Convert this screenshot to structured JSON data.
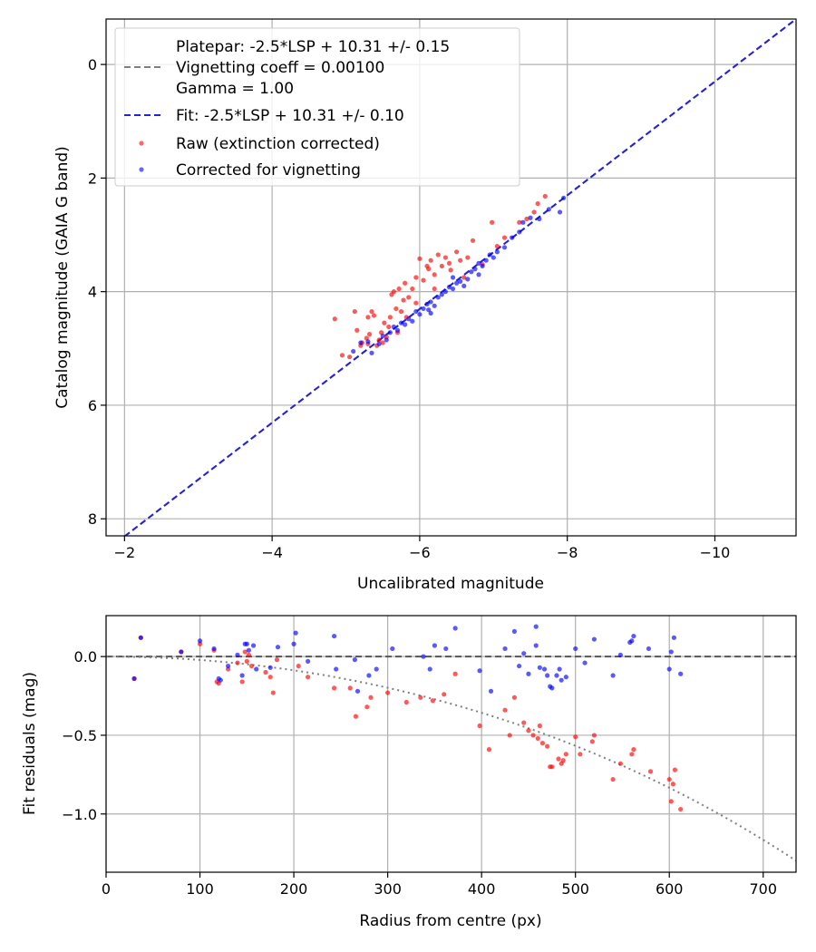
{
  "chart_data": [
    {
      "type": "scatter",
      "xlabel": "Uncalibrated magnitude",
      "ylabel": "Catalog magnitude (GAIA G band)",
      "xlim": [
        -1.75,
        -11.1
      ],
      "ylim": [
        8.3,
        -0.8
      ],
      "x_ticks": [
        -2,
        -4,
        -6,
        -8,
        -10
      ],
      "x_tick_labels": [
        "−2",
        "−4",
        "−6",
        "−8",
        "−10"
      ],
      "y_ticks": [
        0,
        2,
        4,
        6,
        8
      ],
      "y_tick_labels": [
        "0",
        "2",
        "4",
        "6",
        "8"
      ],
      "grid": true,
      "legend_position": "top-left",
      "legend": [
        {
          "text": "Platepar: -2.5*LSP + 10.31 +/- 0.15"
        },
        {
          "text": "Vignetting coeff = 0.00100"
        },
        {
          "text": "Gamma = 1.00"
        },
        {
          "text": "Fit: -2.5*LSP + 10.31 +/- 0.10"
        },
        {
          "text": "Raw (extinction corrected)"
        },
        {
          "text": "Corrected for vignetting"
        }
      ],
      "lines": [
        {
          "name": "Platepar",
          "style": "dashed",
          "color": "#7f7f7f",
          "x": [
            -2.0,
            -11.1
          ],
          "y": [
            8.31,
            -0.8
          ]
        },
        {
          "name": "Fit",
          "style": "dashed",
          "color": "#2222dd",
          "x": [
            -2.0,
            -11.1
          ],
          "y": [
            8.31,
            -0.8
          ]
        }
      ],
      "series": [
        {
          "name": "Raw (extinction corrected)",
          "color": "#ff0000",
          "points": [
            [
              -4.85,
              4.48
            ],
            [
              -4.95,
              5.12
            ],
            [
              -5.05,
              5.15
            ],
            [
              -5.12,
              4.35
            ],
            [
              -5.15,
              4.68
            ],
            [
              -5.2,
              4.95
            ],
            [
              -5.22,
              4.9
            ],
            [
              -5.28,
              4.82
            ],
            [
              -5.3,
              4.92
            ],
            [
              -5.32,
              4.75
            ],
            [
              -5.3,
              4.45
            ],
            [
              -5.35,
              4.35
            ],
            [
              -5.38,
              4.42
            ],
            [
              -5.42,
              4.95
            ],
            [
              -5.45,
              4.85
            ],
            [
              -5.48,
              4.72
            ],
            [
              -5.5,
              4.9
            ],
            [
              -5.52,
              4.55
            ],
            [
              -5.55,
              4.8
            ],
            [
              -5.58,
              4.62
            ],
            [
              -5.6,
              4.45
            ],
            [
              -5.62,
              4.05
            ],
            [
              -5.65,
              4.0
            ],
            [
              -5.68,
              4.3
            ],
            [
              -5.7,
              4.72
            ],
            [
              -5.72,
              3.95
            ],
            [
              -5.75,
              4.35
            ],
            [
              -5.78,
              4.15
            ],
            [
              -5.8,
              3.85
            ],
            [
              -5.82,
              4.45
            ],
            [
              -5.85,
              4.1
            ],
            [
              -5.9,
              3.95
            ],
            [
              -5.95,
              3.75
            ],
            [
              -6.0,
              3.42
            ],
            [
              -6.05,
              3.8
            ],
            [
              -6.1,
              3.55
            ],
            [
              -6.12,
              3.6
            ],
            [
              -6.15,
              3.45
            ],
            [
              -6.2,
              3.7
            ],
            [
              -6.25,
              3.35
            ],
            [
              -6.3,
              3.55
            ],
            [
              -6.35,
              3.4
            ],
            [
              -6.4,
              3.5
            ],
            [
              -6.42,
              3.62
            ],
            [
              -6.5,
              3.3
            ],
            [
              -6.55,
              3.45
            ],
            [
              -6.65,
              3.4
            ],
            [
              -6.72,
              3.1
            ],
            [
              -6.85,
              3.52
            ],
            [
              -6.98,
              2.78
            ],
            [
              -7.05,
              3.2
            ],
            [
              -7.15,
              3.05
            ],
            [
              -7.35,
              2.78
            ],
            [
              -7.45,
              2.72
            ],
            [
              -7.6,
              2.45
            ],
            [
              -7.7,
              2.32
            ],
            [
              -7.55,
              2.6
            ],
            [
              -6.6,
              3.75
            ],
            [
              -6.2,
              3.95
            ],
            [
              -5.95,
              4.2
            ]
          ]
        },
        {
          "name": "Corrected for vignetting",
          "color": "#0000ff",
          "points": [
            [
              -5.1,
              5.05
            ],
            [
              -5.2,
              4.9
            ],
            [
              -5.3,
              4.88
            ],
            [
              -5.35,
              5.08
            ],
            [
              -5.45,
              4.92
            ],
            [
              -5.5,
              4.78
            ],
            [
              -5.6,
              4.72
            ],
            [
              -5.65,
              4.62
            ],
            [
              -5.7,
              4.68
            ],
            [
              -5.75,
              4.55
            ],
            [
              -5.8,
              4.58
            ],
            [
              -5.85,
              4.48
            ],
            [
              -5.9,
              4.52
            ],
            [
              -5.95,
              4.35
            ],
            [
              -6.0,
              4.4
            ],
            [
              -6.05,
              4.3
            ],
            [
              -6.1,
              4.22
            ],
            [
              -6.12,
              4.32
            ],
            [
              -6.15,
              4.18
            ],
            [
              -6.2,
              4.25
            ],
            [
              -6.25,
              4.1
            ],
            [
              -6.3,
              4.05
            ],
            [
              -6.35,
              4.0
            ],
            [
              -6.4,
              3.92
            ],
            [
              -6.45,
              3.95
            ],
            [
              -6.5,
              3.85
            ],
            [
              -6.55,
              3.82
            ],
            [
              -6.6,
              3.9
            ],
            [
              -6.65,
              3.78
            ],
            [
              -6.7,
              3.65
            ],
            [
              -6.75,
              3.6
            ],
            [
              -6.8,
              3.7
            ],
            [
              -6.85,
              3.55
            ],
            [
              -6.9,
              3.45
            ],
            [
              -6.95,
              3.35
            ],
            [
              -7.0,
              3.4
            ],
            [
              -7.05,
              3.3
            ],
            [
              -7.15,
              3.22
            ],
            [
              -7.25,
              3.05
            ],
            [
              -7.35,
              2.95
            ],
            [
              -7.4,
              2.78
            ],
            [
              -7.5,
              2.7
            ],
            [
              -7.62,
              2.72
            ],
            [
              -7.75,
              2.55
            ],
            [
              -7.9,
              2.6
            ],
            [
              -7.95,
              2.35
            ],
            [
              -6.15,
              4.38
            ],
            [
              -5.55,
              4.85
            ],
            [
              -6.8,
              3.5
            ],
            [
              -6.45,
              3.75
            ]
          ]
        }
      ]
    },
    {
      "type": "scatter",
      "xlabel": "Radius from centre (px)",
      "ylabel": "Fit residuals (mag)",
      "xlim": [
        0,
        735
      ],
      "ylim": [
        -1.37,
        0.26
      ],
      "x_ticks": [
        0,
        100,
        200,
        300,
        400,
        500,
        600,
        700
      ],
      "x_tick_labels": [
        "0",
        "100",
        "200",
        "300",
        "400",
        "500",
        "600",
        "700"
      ],
      "y_ticks": [
        0.0,
        -0.5,
        -1.0
      ],
      "y_tick_labels": [
        "0.0",
        "−0.5",
        "−1.0"
      ],
      "grid": true,
      "lines": [
        {
          "name": "zero",
          "style": "dashed",
          "color": "#555555",
          "x": [
            0,
            735
          ],
          "y": [
            0,
            0
          ]
        },
        {
          "name": "vignetting model",
          "style": "dotted",
          "color": "#7f7f7f",
          "curve": "vignetting",
          "coeff": 0.001,
          "x_range": [
            0,
            735
          ]
        }
      ],
      "series": [
        {
          "name": "Raw residuals",
          "color": "#ff0000",
          "points": [
            [
              30,
              -0.14
            ],
            [
              37,
              0.12
            ],
            [
              80,
              0.03
            ],
            [
              100,
              0.08
            ],
            [
              115,
              0.04
            ],
            [
              118,
              -0.16
            ],
            [
              120,
              -0.17
            ],
            [
              130,
              -0.08
            ],
            [
              140,
              -0.04
            ],
            [
              145,
              -0.16
            ],
            [
              148,
              0.03
            ],
            [
              150,
              -0.03
            ],
            [
              152,
              0.01
            ],
            [
              155,
              -0.06
            ],
            [
              170,
              -0.1
            ],
            [
              175,
              -0.13
            ],
            [
              178,
              -0.23
            ],
            [
              182,
              -0.02
            ],
            [
              205,
              -0.06
            ],
            [
              215,
              -0.13
            ],
            [
              243,
              -0.2
            ],
            [
              260,
              -0.2
            ],
            [
              266,
              -0.38
            ],
            [
              278,
              -0.32
            ],
            [
              282,
              -0.26
            ],
            [
              300,
              -0.23
            ],
            [
              320,
              -0.29
            ],
            [
              335,
              -0.26
            ],
            [
              348,
              -0.28
            ],
            [
              360,
              -0.24
            ],
            [
              372,
              -0.11
            ],
            [
              398,
              -0.44
            ],
            [
              408,
              -0.59
            ],
            [
              425,
              -0.34
            ],
            [
              430,
              -0.5
            ],
            [
              435,
              -0.26
            ],
            [
              445,
              -0.42
            ],
            [
              450,
              -0.47
            ],
            [
              455,
              -0.5
            ],
            [
              460,
              -0.52
            ],
            [
              462,
              -0.44
            ],
            [
              465,
              -0.55
            ],
            [
              470,
              -0.57
            ],
            [
              473,
              -0.7
            ],
            [
              475,
              -0.7
            ],
            [
              482,
              -0.65
            ],
            [
              485,
              -0.68
            ],
            [
              487,
              -0.66
            ],
            [
              490,
              -0.62
            ],
            [
              500,
              -0.51
            ],
            [
              505,
              -0.62
            ],
            [
              518,
              -0.54
            ],
            [
              520,
              -0.5
            ],
            [
              540,
              -0.78
            ],
            [
              548,
              -0.68
            ],
            [
              560,
              -0.62
            ],
            [
              562,
              -0.59
            ],
            [
              580,
              -0.73
            ],
            [
              600,
              -0.78
            ],
            [
              602,
              -0.92
            ],
            [
              604,
              -0.81
            ],
            [
              606,
              -0.72
            ],
            [
              612,
              -0.97
            ]
          ]
        },
        {
          "name": "Corrected residuals",
          "color": "#0000ff",
          "points": [
            [
              30,
              -0.14
            ],
            [
              37,
              0.12
            ],
            [
              80,
              0.03
            ],
            [
              100,
              0.1
            ],
            [
              115,
              0.05
            ],
            [
              120,
              -0.14
            ],
            [
              122,
              -0.15
            ],
            [
              130,
              -0.06
            ],
            [
              140,
              0.01
            ],
            [
              145,
              -0.12
            ],
            [
              148,
              0.08
            ],
            [
              150,
              0.08
            ],
            [
              152,
              0.04
            ],
            [
              157,
              0.07
            ],
            [
              160,
              -0.08
            ],
            [
              175,
              -0.07
            ],
            [
              183,
              0.06
            ],
            [
              200,
              0.08
            ],
            [
              202,
              0.15
            ],
            [
              215,
              -0.03
            ],
            [
              243,
              0.13
            ],
            [
              245,
              -0.08
            ],
            [
              265,
              -0.02
            ],
            [
              268,
              -0.22
            ],
            [
              280,
              -0.12
            ],
            [
              288,
              -0.08
            ],
            [
              305,
              0.05
            ],
            [
              338,
              0.0
            ],
            [
              345,
              -0.08
            ],
            [
              350,
              0.07
            ],
            [
              362,
              0.05
            ],
            [
              372,
              0.18
            ],
            [
              398,
              -0.09
            ],
            [
              410,
              -0.22
            ],
            [
              425,
              0.05
            ],
            [
              435,
              0.16
            ],
            [
              440,
              -0.06
            ],
            [
              445,
              0.02
            ],
            [
              450,
              -0.11
            ],
            [
              458,
              0.07
            ],
            [
              458,
              0.19
            ],
            [
              462,
              -0.07
            ],
            [
              467,
              -0.08
            ],
            [
              470,
              -0.12
            ],
            [
              473,
              -0.19
            ],
            [
              475,
              -0.2
            ],
            [
              480,
              -0.12
            ],
            [
              483,
              -0.08
            ],
            [
              485,
              -0.15
            ],
            [
              490,
              -0.13
            ],
            [
              500,
              0.05
            ],
            [
              510,
              -0.04
            ],
            [
              520,
              0.11
            ],
            [
              540,
              -0.12
            ],
            [
              548,
              0.01
            ],
            [
              558,
              0.09
            ],
            [
              560,
              0.1
            ],
            [
              562,
              0.13
            ],
            [
              578,
              0.05
            ],
            [
              600,
              -0.08
            ],
            [
              602,
              0.03
            ],
            [
              605,
              0.12
            ],
            [
              612,
              -0.11
            ]
          ]
        }
      ]
    }
  ]
}
